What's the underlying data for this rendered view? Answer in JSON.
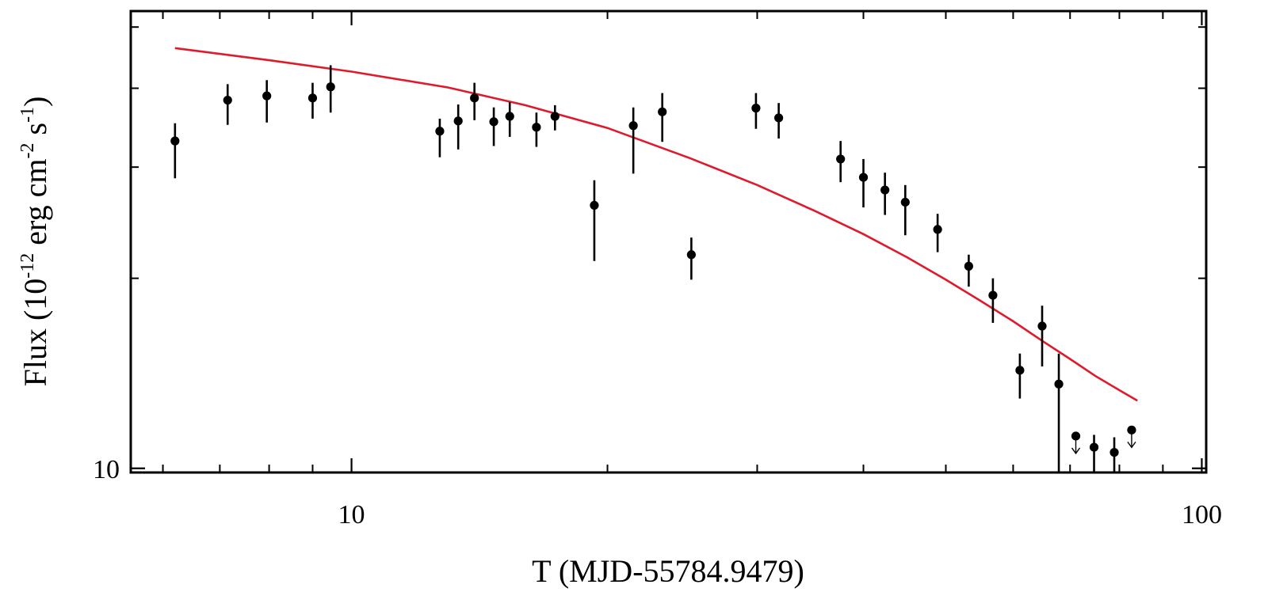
{
  "chart_data": {
    "type": "scatter",
    "xlabel": "T (MJD-55784.9479)",
    "ylabel": {
      "text": "Flux (10",
      "exp1": "-12",
      "mid1": " erg cm",
      "exp2": "-2",
      "mid2": " s",
      "exp3": "-1",
      "close": ")"
    },
    "x_scale": "log",
    "y_scale": "log",
    "xlim": [
      5.5,
      101.2
    ],
    "ylim": [
      9.85,
      53.0
    ],
    "x_tick_labels": [
      {
        "value": 10,
        "label": "10"
      },
      {
        "value": 100,
        "label": "100"
      }
    ],
    "y_tick_labels": [
      {
        "value": 10,
        "label": "10"
      }
    ],
    "x_major_ticks": [
      10,
      100
    ],
    "x_minor_ticks": [
      6,
      7,
      8,
      9,
      20,
      30,
      40,
      50,
      60,
      70,
      80,
      90
    ],
    "y_major_ticks": [
      10
    ],
    "y_minor_ticks": [
      20,
      30,
      40,
      50
    ],
    "grid": false,
    "legend": "none",
    "colors": {
      "model": "#e0192b",
      "points": "#000000"
    },
    "model_curve": {
      "x": [
        6.2,
        8,
        10,
        13,
        16,
        20,
        25,
        30,
        35,
        40,
        45,
        50,
        55,
        60,
        65,
        70,
        75,
        80,
        84
      ],
      "y": [
        46.3,
        44.3,
        42.5,
        40.1,
        37.6,
        34.6,
        31.0,
        28.1,
        25.6,
        23.5,
        21.6,
        19.9,
        18.4,
        17.1,
        15.9,
        14.9,
        14.0,
        13.3,
        12.8
      ]
    },
    "points": [
      {
        "x": 6.2,
        "y": 33.0,
        "lo": 28.8,
        "hi": 35.2
      },
      {
        "x": 7.15,
        "y": 38.3,
        "lo": 35.0,
        "hi": 40.6
      },
      {
        "x": 7.95,
        "y": 38.9,
        "lo": 35.3,
        "hi": 41.2
      },
      {
        "x": 9.0,
        "y": 38.6,
        "lo": 35.8,
        "hi": 40.8
      },
      {
        "x": 9.45,
        "y": 40.2,
        "lo": 36.6,
        "hi": 43.5
      },
      {
        "x": 12.7,
        "y": 34.2,
        "lo": 31.1,
        "hi": 35.8
      },
      {
        "x": 13.35,
        "y": 35.5,
        "lo": 32.0,
        "hi": 37.7
      },
      {
        "x": 13.95,
        "y": 38.6,
        "lo": 35.6,
        "hi": 40.8
      },
      {
        "x": 14.7,
        "y": 35.4,
        "lo": 32.4,
        "hi": 37.3
      },
      {
        "x": 15.35,
        "y": 36.1,
        "lo": 33.5,
        "hi": 38.0
      },
      {
        "x": 16.5,
        "y": 34.7,
        "lo": 32.3,
        "hi": 36.6
      },
      {
        "x": 17.35,
        "y": 36.1,
        "lo": 34.3,
        "hi": 37.6
      },
      {
        "x": 19.3,
        "y": 26.1,
        "lo": 21.3,
        "hi": 28.6
      },
      {
        "x": 21.45,
        "y": 34.9,
        "lo": 29.3,
        "hi": 37.3
      },
      {
        "x": 23.2,
        "y": 36.7,
        "lo": 32.9,
        "hi": 39.3
      },
      {
        "x": 25.1,
        "y": 21.8,
        "lo": 19.9,
        "hi": 23.2
      },
      {
        "x": 29.9,
        "y": 37.2,
        "lo": 34.5,
        "hi": 39.3
      },
      {
        "x": 31.8,
        "y": 35.9,
        "lo": 33.3,
        "hi": 37.9
      },
      {
        "x": 37.6,
        "y": 30.9,
        "lo": 28.4,
        "hi": 33.0
      },
      {
        "x": 40.0,
        "y": 28.9,
        "lo": 25.9,
        "hi": 30.9
      },
      {
        "x": 42.4,
        "y": 27.6,
        "lo": 25.2,
        "hi": 29.4
      },
      {
        "x": 44.8,
        "y": 26.4,
        "lo": 23.4,
        "hi": 28.1
      },
      {
        "x": 48.9,
        "y": 23.9,
        "lo": 22.0,
        "hi": 25.3
      },
      {
        "x": 53.2,
        "y": 20.9,
        "lo": 19.4,
        "hi": 21.8
      },
      {
        "x": 56.8,
        "y": 18.8,
        "lo": 17.0,
        "hi": 20.0
      },
      {
        "x": 61.1,
        "y": 14.3,
        "lo": 12.9,
        "hi": 15.2
      },
      {
        "x": 64.9,
        "y": 16.8,
        "lo": 14.5,
        "hi": 18.1
      },
      {
        "x": 67.9,
        "y": 13.6,
        "lo": 9.85,
        "hi": 15.2
      },
      {
        "x": 71.1,
        "y": 11.25,
        "upper_limit": true
      },
      {
        "x": 74.7,
        "y": 10.8,
        "lo": 9.85,
        "hi": 11.3
      },
      {
        "x": 78.9,
        "y": 10.6,
        "lo": 9.85,
        "hi": 11.2
      },
      {
        "x": 82.7,
        "y": 11.5,
        "upper_limit": true
      }
    ]
  }
}
